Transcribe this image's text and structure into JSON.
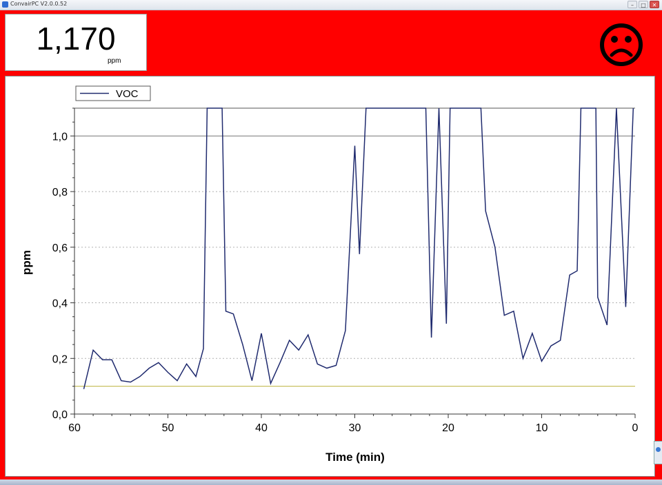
{
  "window": {
    "title": "ConvairPC V2.0.0.52",
    "controls": [
      "–",
      "□",
      "✕"
    ]
  },
  "reading": {
    "value": "1,170",
    "unit": "ppm"
  },
  "status_icon": "sad-face-icon",
  "colors": {
    "background": "#ff0000",
    "series": "#1f2a6e",
    "threshold": "#c8c060",
    "grid": "#b0b0b0"
  },
  "chart_data": {
    "type": "line",
    "xlabel": "Time (min)",
    "ylabel": "ppm",
    "xlim": [
      60,
      0
    ],
    "ylim": [
      0,
      1.1
    ],
    "x_ticks": [
      60,
      50,
      40,
      30,
      20,
      10,
      0
    ],
    "x_tick_labels": [
      "60",
      "50",
      "40",
      "30",
      "20",
      "10",
      "0"
    ],
    "y_ticks": [
      0,
      0.2,
      0.4,
      0.6,
      0.8,
      1.0
    ],
    "y_tick_labels": [
      "0,0",
      "0,2",
      "0,4",
      "0,6",
      "0,8",
      "1,0"
    ],
    "grid": "horizontal dotted",
    "legend": {
      "position": "top-left",
      "entries": [
        "VOC"
      ]
    },
    "threshold": {
      "y": 0.1
    },
    "series": [
      {
        "name": "VOC",
        "x": [
          59,
          58,
          57,
          56,
          55,
          54,
          53,
          52,
          51,
          50,
          49,
          48,
          47,
          46.2,
          45.8,
          44.2,
          43.8,
          43,
          42,
          41,
          40,
          39,
          38,
          37,
          36,
          35,
          34,
          33,
          32,
          31,
          30,
          29.5,
          28.8,
          28.3,
          22.4,
          21.8,
          21.0,
          20.2,
          19.8,
          16.5,
          16,
          15,
          14,
          13,
          12,
          11,
          10,
          9,
          8,
          7,
          6.2,
          5.8,
          4.2,
          4,
          3,
          2,
          1,
          0.2
        ],
        "values": [
          0.09,
          0.23,
          0.195,
          0.195,
          0.12,
          0.115,
          0.135,
          0.165,
          0.185,
          0.15,
          0.12,
          0.18,
          0.135,
          0.235,
          1.1,
          1.1,
          0.37,
          0.36,
          0.25,
          0.12,
          0.29,
          0.11,
          0.185,
          0.265,
          0.23,
          0.285,
          0.18,
          0.165,
          0.175,
          0.3,
          0.965,
          0.575,
          1.1,
          1.1,
          1.1,
          0.275,
          1.1,
          0.325,
          1.1,
          1.1,
          0.73,
          0.6,
          0.355,
          0.37,
          0.2,
          0.29,
          0.19,
          0.245,
          0.265,
          0.5,
          0.515,
          1.1,
          1.1,
          0.42,
          0.32,
          1.1,
          0.385,
          1.1
        ]
      }
    ]
  }
}
